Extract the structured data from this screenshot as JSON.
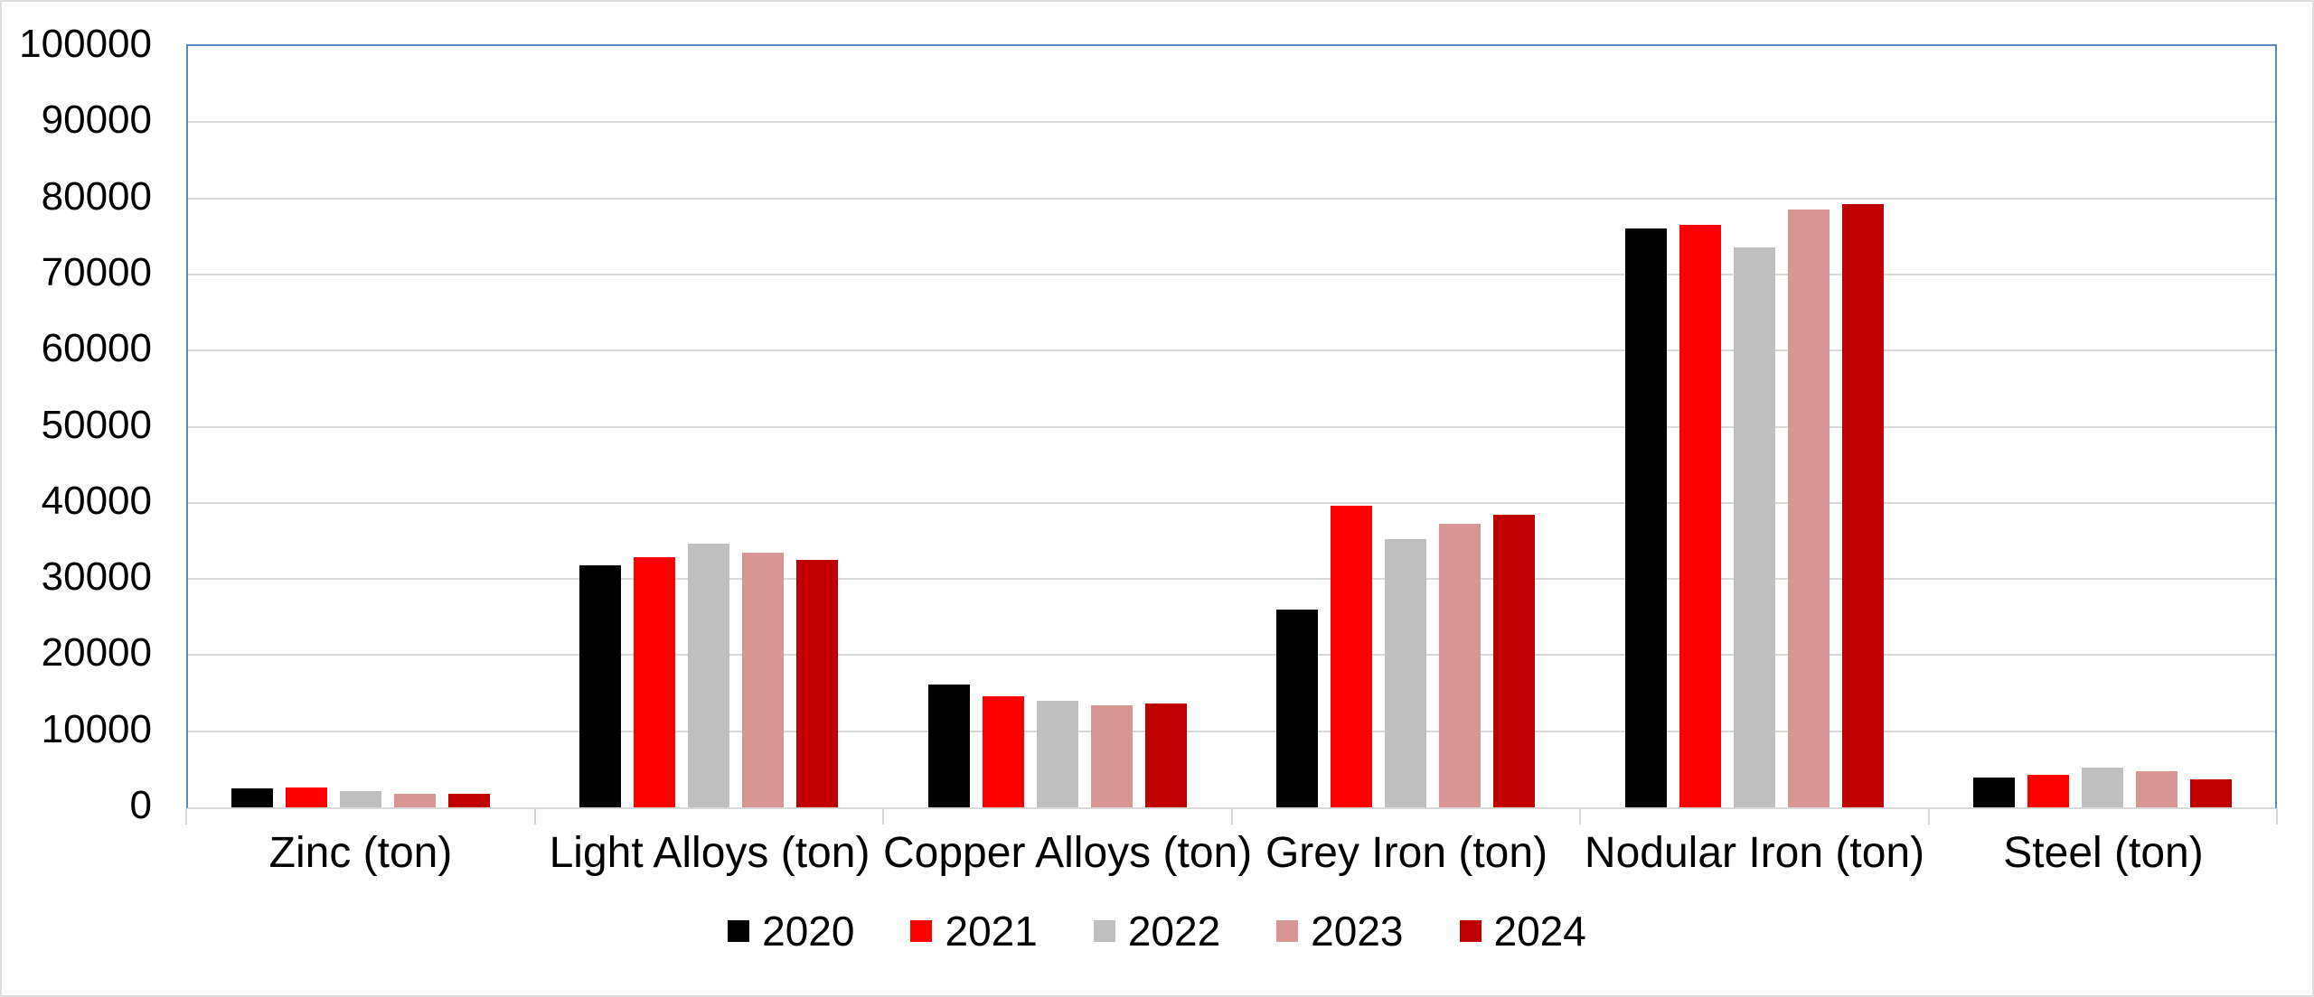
{
  "chart_data": {
    "type": "bar",
    "title": "",
    "xlabel": "",
    "ylabel": "",
    "categories": [
      "Zinc (ton)",
      "Light Alloys (ton)",
      "Copper Alloys (ton)",
      "Grey Iron (ton)",
      "Nodular Iron (ton)",
      "Steel (ton)"
    ],
    "series": [
      {
        "name": "2020",
        "color": "#000000",
        "values": [
          2500,
          31800,
          16100,
          26000,
          76000,
          3900
        ]
      },
      {
        "name": "2021",
        "color": "#ff0000",
        "values": [
          2650,
          32900,
          14600,
          39600,
          76500,
          4300
        ]
      },
      {
        "name": "2022",
        "color": "#bfbfbf",
        "values": [
          2150,
          34600,
          14000,
          35200,
          73600,
          5200
        ]
      },
      {
        "name": "2023",
        "color": "#d99594",
        "values": [
          1750,
          33500,
          13400,
          37200,
          78500,
          4800
        ]
      },
      {
        "name": "2024",
        "color": "#c00000",
        "values": [
          1800,
          32500,
          13700,
          38400,
          79200,
          3700
        ]
      }
    ],
    "ylim": [
      0,
      100000
    ],
    "ytick_step": 10000,
    "ytick_labels": [
      "0",
      "10000",
      "20000",
      "30000",
      "40000",
      "50000",
      "60000",
      "70000",
      "80000",
      "90000",
      "100000"
    ],
    "grid": "horizontal",
    "legend_position": "bottom",
    "style": {
      "background": "#ffffff",
      "outer_border_color": "#dcdcdc",
      "plot_border_color": "#5b87c5",
      "gridline_color": "#d9d9d9",
      "axis_line_color": "#d9d9d9",
      "text_color": "#000000"
    }
  }
}
